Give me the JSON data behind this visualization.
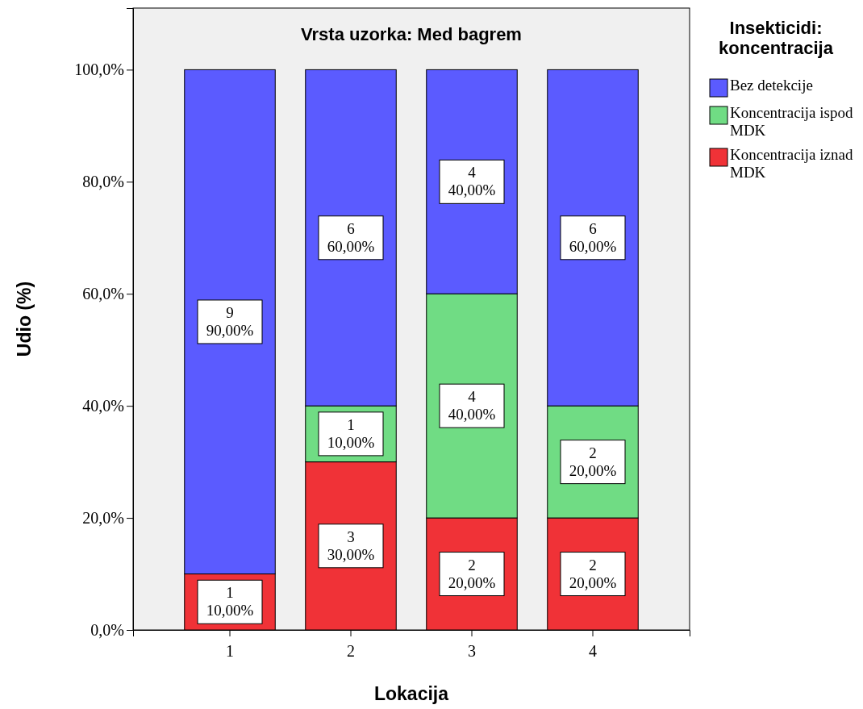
{
  "chart_data": {
    "type": "bar",
    "stacked": true,
    "title": "Vrsta uzorka: Med bagrem",
    "xlabel": "Lokacija",
    "ylabel": "Udio (%)",
    "legend_title": "Insekticidi: koncentracija",
    "legend": "right",
    "grid": false,
    "categories": [
      "1",
      "2",
      "3",
      "4"
    ],
    "ylim": [
      0,
      111
    ],
    "yticks": [
      {
        "value": 0,
        "label": "0,0%"
      },
      {
        "value": 20,
        "label": "20,0%"
      },
      {
        "value": 40,
        "label": "40,0%"
      },
      {
        "value": 60,
        "label": "60,0%"
      },
      {
        "value": 80,
        "label": "80,0%"
      },
      {
        "value": 100,
        "label": "100,0%"
      }
    ],
    "series": [
      {
        "name": "Koncentracija iznad MDK",
        "color": "#f03237",
        "values": [
          10,
          30,
          20,
          20
        ],
        "value_labels": [
          "1\n10,00%",
          "3\n30,00%",
          "2\n20,00%",
          "2\n20,00%"
        ]
      },
      {
        "name": "Koncentracija ispod MDK",
        "color": "#70dc84",
        "values": [
          0,
          10,
          40,
          20
        ],
        "value_labels": [
          null,
          "1\n10,00%",
          "4\n40,00%",
          "2\n20,00%"
        ]
      },
      {
        "name": "Bez detekcije",
        "color": "#5b5bff",
        "values": [
          90,
          60,
          40,
          60
        ],
        "value_labels": [
          "9\n90,00%",
          "6\n60,00%",
          "4\n40,00%",
          "6\n60,00%"
        ]
      }
    ]
  }
}
